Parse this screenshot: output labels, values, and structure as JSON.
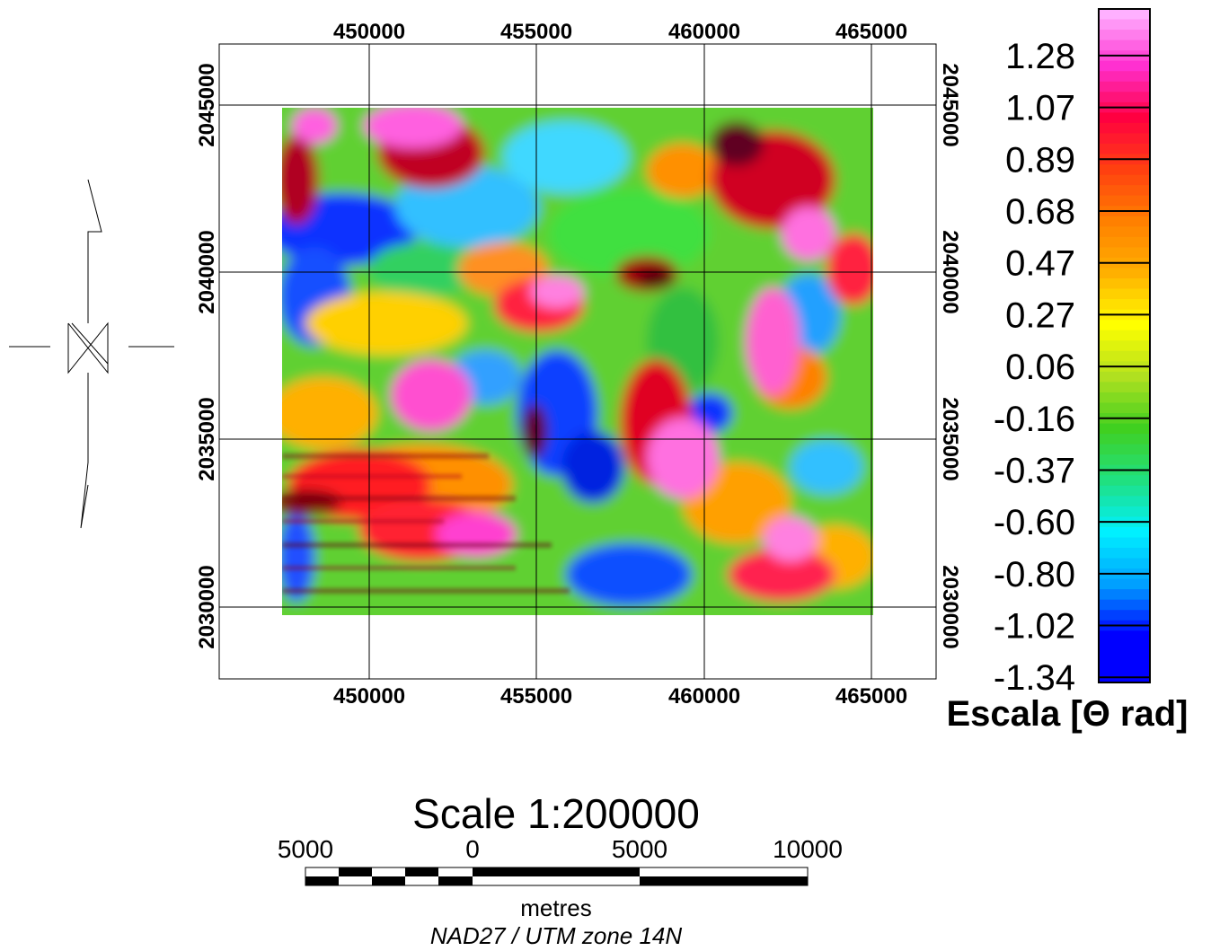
{
  "map": {
    "x_ticks_top": [
      "450000",
      "455000",
      "460000",
      "465000"
    ],
    "x_ticks_bottom": [
      "450000",
      "455000",
      "460000",
      "465000"
    ],
    "y_ticks_left": [
      "2045000",
      "2040000",
      "2035000",
      "2030000"
    ],
    "y_ticks_right": [
      "2045000",
      "2040000",
      "2035000",
      "2030000"
    ],
    "x_range": [
      445500,
      467000
    ],
    "y_range": [
      2027800,
      2046800
    ],
    "data_extent_x": [
      447300,
      465000
    ],
    "data_extent_y": [
      2029800,
      2044900
    ]
  },
  "legend": {
    "values": [
      "1.28",
      "1.07",
      "0.89",
      "0.68",
      "0.47",
      "0.27",
      "0.06",
      "-0.16",
      "-0.37",
      "-0.60",
      "-0.80",
      "-1.02",
      "-1.34"
    ],
    "title": "Escala [Θ rad]",
    "colors": [
      "#ffb0ff",
      "#ff30d0",
      "#ff0040",
      "#ff4010",
      "#ff8000",
      "#ffb000",
      "#ffff00",
      "#b0e020",
      "#40d020",
      "#20e080",
      "#00f0ff",
      "#00a0ff",
      "#0000ff"
    ]
  },
  "scalebar": {
    "title": "Scale 1:200000",
    "labels": [
      "5000",
      "0",
      "5000",
      "10000"
    ],
    "units": "metres",
    "projection": "NAD27 / UTM zone 14N"
  },
  "north_arrow": {
    "icon": "north-arrow-icon"
  }
}
